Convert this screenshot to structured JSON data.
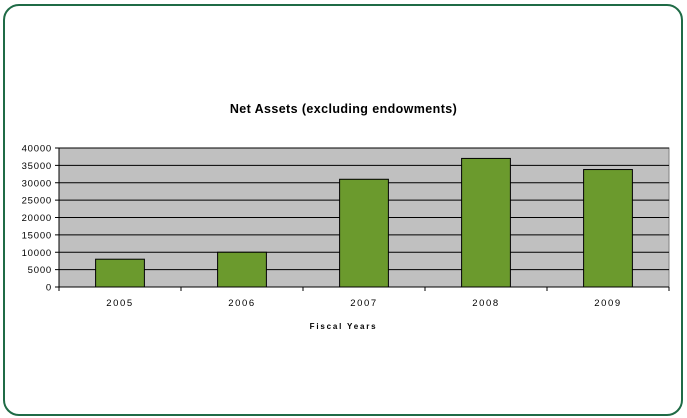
{
  "colors": {
    "bar": "#6b9a2d",
    "plot_background": "#c0c0c0",
    "frame_border": "#1f6b46"
  },
  "chart_data": {
    "type": "bar",
    "title": "Net Assets (excluding endowments)",
    "xlabel": "Fiscal Years",
    "ylabel": "",
    "categories": [
      "2005",
      "2006",
      "2007",
      "2008",
      "2009"
    ],
    "values": [
      8000,
      10000,
      31000,
      37000,
      33800
    ],
    "ylim": [
      0,
      40000
    ],
    "yticks": [
      0,
      5000,
      10000,
      15000,
      20000,
      25000,
      30000,
      35000,
      40000
    ],
    "grid": true,
    "legend": "none"
  }
}
